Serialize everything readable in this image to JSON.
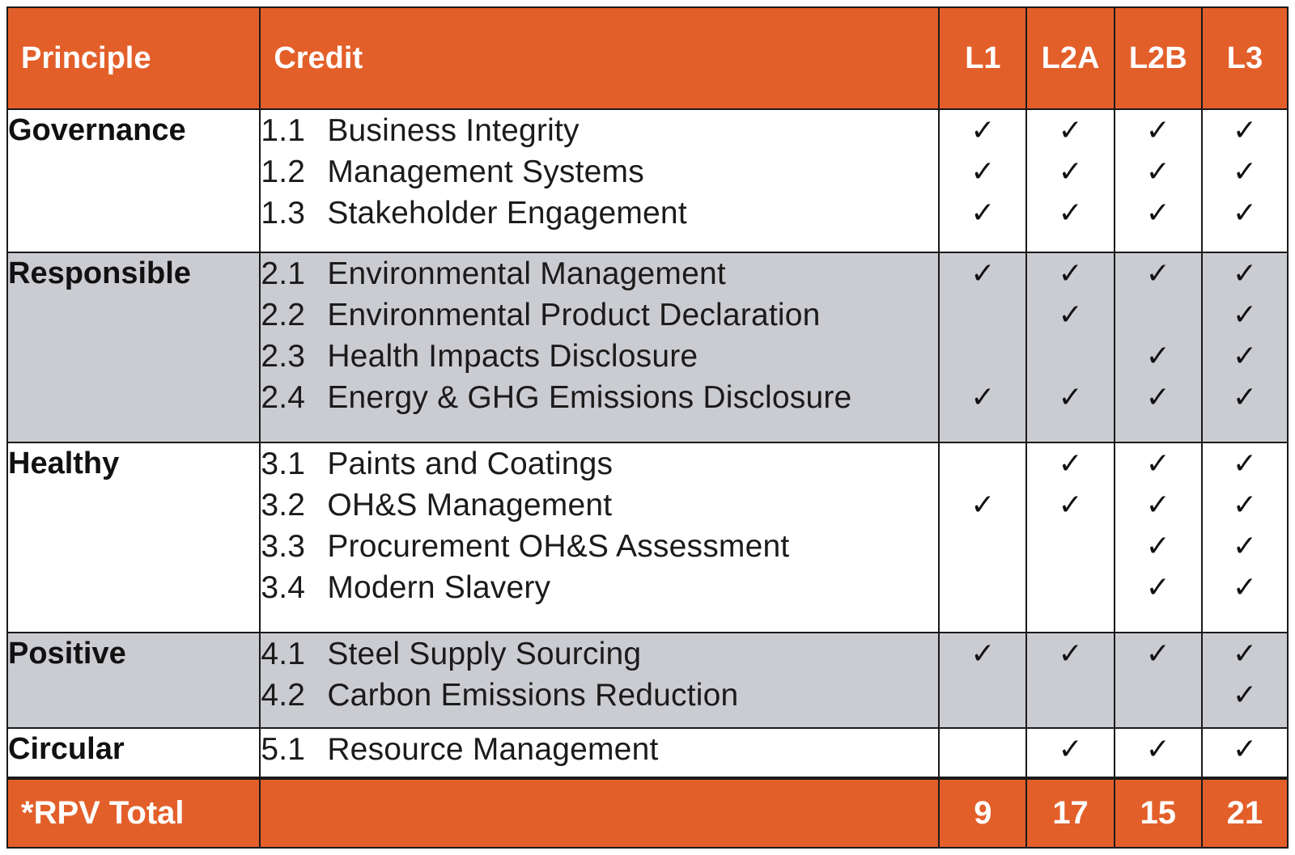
{
  "header": {
    "principle_label": "Principle",
    "credit_label": "Credit",
    "levels": [
      "L1",
      "L2A",
      "L2B",
      "L3"
    ]
  },
  "check_glyph": "✓",
  "groups": [
    {
      "principle": "Governance",
      "shaded": false,
      "credits": [
        {
          "num": "1.1",
          "name": "Business Integrity",
          "levels": [
            true,
            true,
            true,
            true
          ]
        },
        {
          "num": "1.2",
          "name": "Management Systems",
          "levels": [
            true,
            true,
            true,
            true
          ]
        },
        {
          "num": "1.3",
          "name": "Stakeholder Engagement",
          "levels": [
            true,
            true,
            true,
            true
          ]
        }
      ]
    },
    {
      "principle": "Responsible",
      "shaded": true,
      "credits": [
        {
          "num": "2.1",
          "name": "Environmental Management",
          "levels": [
            true,
            true,
            true,
            true
          ]
        },
        {
          "num": "2.2",
          "name": "Environmental Product Declaration",
          "levels": [
            false,
            true,
            false,
            true
          ]
        },
        {
          "num": "2.3",
          "name": "Health Impacts Disclosure",
          "levels": [
            false,
            false,
            true,
            true
          ]
        },
        {
          "num": "2.4",
          "name": "Energy & GHG Emissions Disclosure",
          "levels": [
            true,
            true,
            true,
            true
          ]
        }
      ]
    },
    {
      "principle": "Healthy",
      "shaded": false,
      "credits": [
        {
          "num": "3.1",
          "name": "Paints and Coatings",
          "levels": [
            false,
            true,
            true,
            true
          ]
        },
        {
          "num": "3.2",
          "name": "OH&S Management",
          "levels": [
            true,
            true,
            true,
            true
          ]
        },
        {
          "num": "3.3",
          "name": "Procurement OH&S Assessment",
          "levels": [
            false,
            false,
            true,
            true
          ]
        },
        {
          "num": "3.4",
          "name": "Modern Slavery",
          "levels": [
            false,
            false,
            true,
            true
          ]
        }
      ]
    },
    {
      "principle": "Positive",
      "shaded": true,
      "credits": [
        {
          "num": "4.1",
          "name": "Steel Supply Sourcing",
          "levels": [
            true,
            true,
            true,
            true
          ]
        },
        {
          "num": "4.2",
          "name": "Carbon Emissions Reduction",
          "levels": [
            false,
            false,
            false,
            true
          ]
        }
      ]
    },
    {
      "principle": "Circular",
      "shaded": false,
      "credits": [
        {
          "num": "5.1",
          "name": "Resource Management",
          "levels": [
            false,
            true,
            true,
            true
          ]
        }
      ]
    }
  ],
  "total": {
    "label": "*RPV Total",
    "values": [
      "9",
      "17",
      "15",
      "21"
    ]
  },
  "colors": {
    "accent": "#e35f2a",
    "shaded_row": "#cbccd1",
    "border": "#1a1a1a"
  }
}
